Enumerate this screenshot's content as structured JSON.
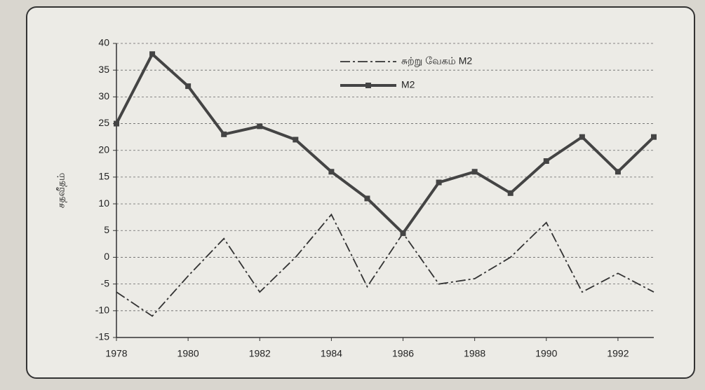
{
  "chart_data": {
    "type": "line",
    "y_label": "சதவீதம்",
    "x": [
      1978,
      1979,
      1980,
      1981,
      1982,
      1983,
      1984,
      1985,
      1986,
      1987,
      1988,
      1989,
      1990,
      1991,
      1992,
      1993
    ],
    "series": [
      {
        "name": "சுற்று வேகம் M2",
        "color": "#333333",
        "values": [
          -6.5,
          -11,
          -3.5,
          3.5,
          -6.5,
          0,
          8,
          -5.5,
          4.5,
          -5,
          -4,
          0,
          6.5,
          -6.5,
          -3,
          -6.5
        ]
      },
      {
        "name": "M2",
        "color": "#444444",
        "values": [
          25,
          38,
          32,
          23,
          24.5,
          22,
          16,
          11,
          4.5,
          14,
          16,
          12,
          18,
          22.5,
          16,
          22.5
        ]
      }
    ],
    "xlim": [
      1978,
      1993
    ],
    "xticks": [
      1978,
      1980,
      1982,
      1984,
      1986,
      1988,
      1990,
      1992
    ],
    "ylim": [
      -15,
      40
    ],
    "yticks": [
      -15,
      -10,
      -5,
      0,
      5,
      10,
      15,
      20,
      25,
      30,
      35,
      40
    ],
    "grid": true,
    "legend": "top"
  }
}
